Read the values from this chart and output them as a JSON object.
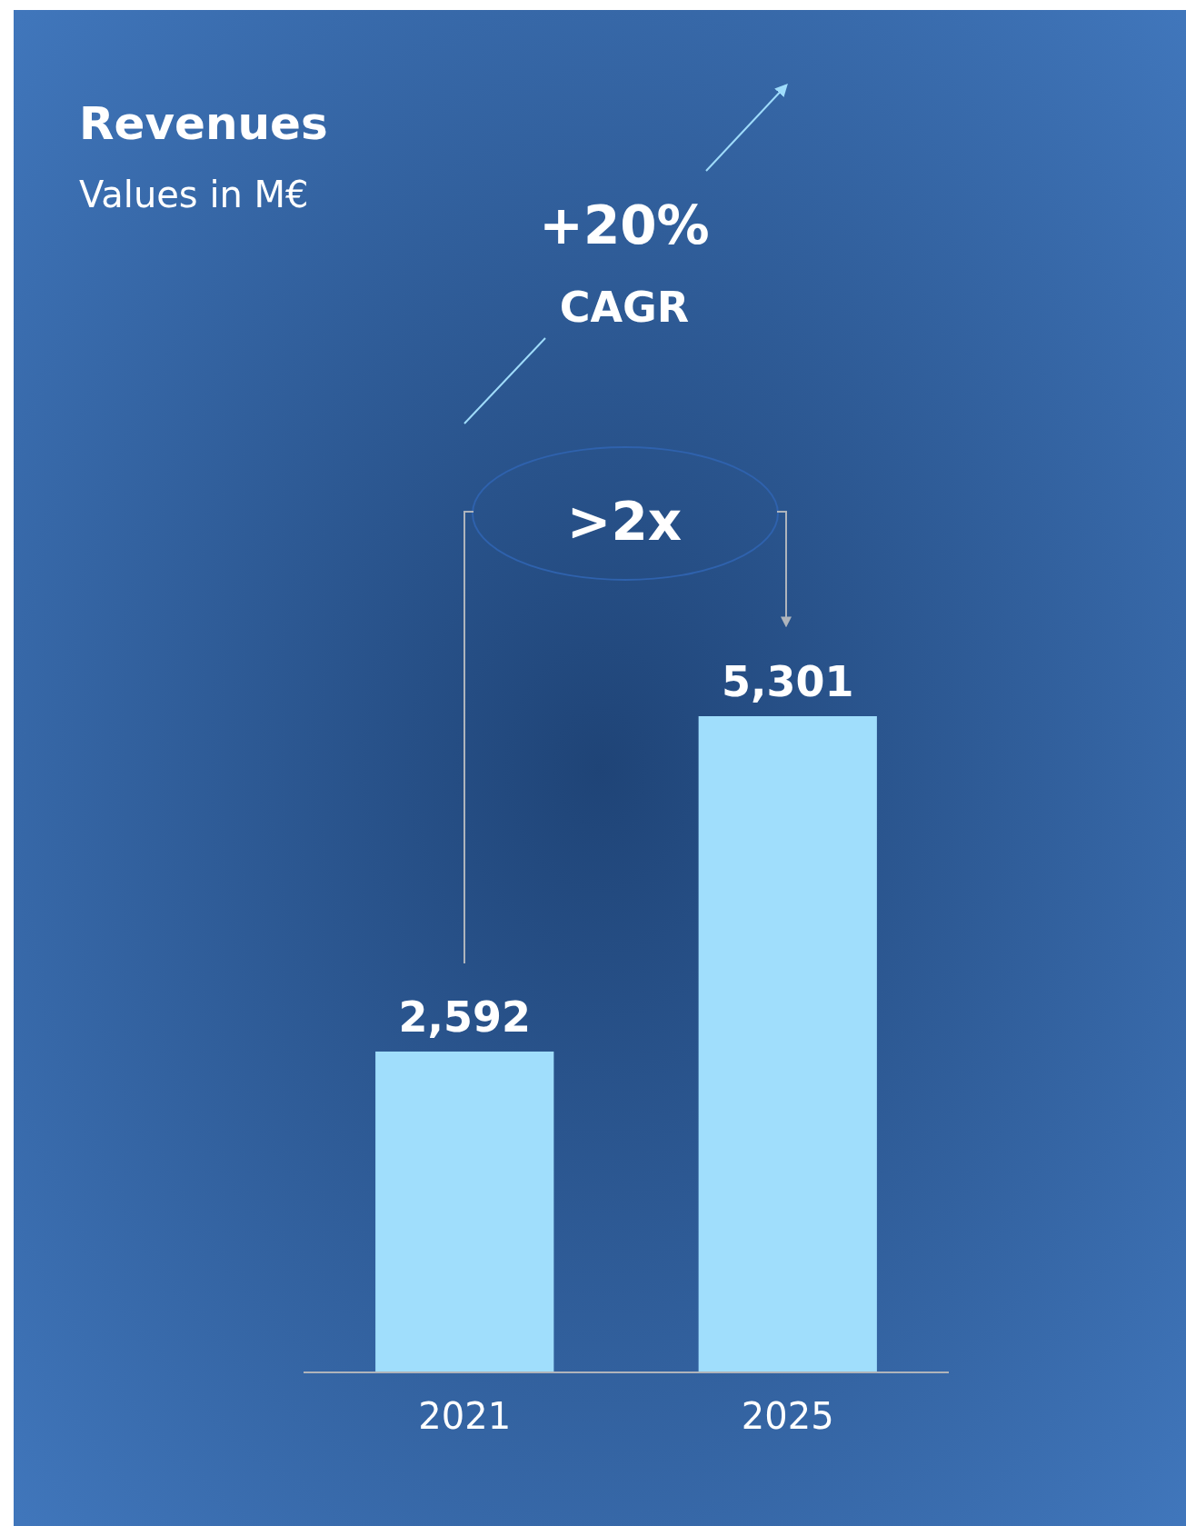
{
  "chart_data": {
    "type": "bar",
    "title": "Revenues",
    "subtitle": "Values in M€",
    "categories": [
      "2021",
      "2025"
    ],
    "values": [
      2592,
      5301
    ],
    "color": "#a0defc",
    "value_labels": [
      "2,592",
      "5,301"
    ],
    "annotations": [
      "+20%",
      "CAGR",
      ">2x"
    ]
  }
}
